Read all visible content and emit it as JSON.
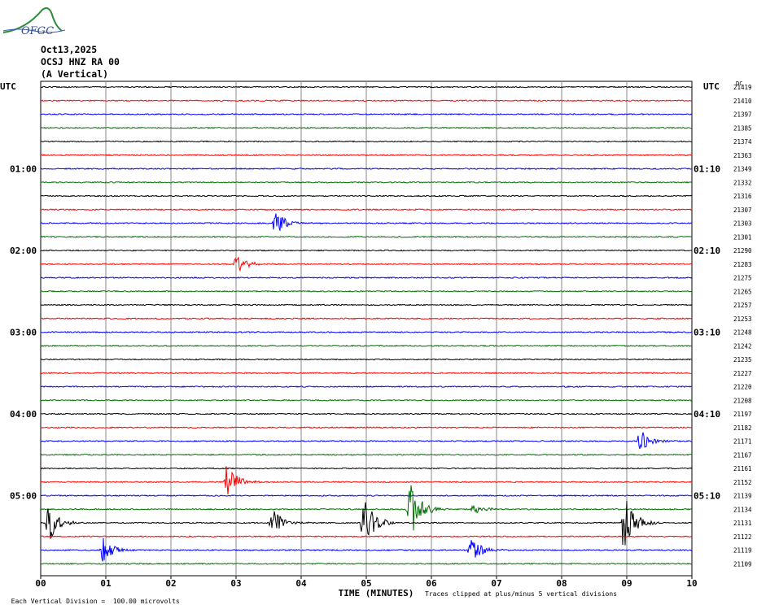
{
  "logo": {
    "text": "OFGC",
    "icon": "ofgc-logo-swoosh"
  },
  "header": {
    "date": "Oct13,2025",
    "station": "OCSJ HNZ RA 00",
    "component": "(A Vertical)"
  },
  "axis": {
    "utc_left": "UTC",
    "utc_right": "UTC",
    "dc_label": "DC",
    "xlabel": "TIME (MINUTES)",
    "x_ticks": [
      "00",
      "01",
      "02",
      "03",
      "04",
      "05",
      "06",
      "07",
      "08",
      "09",
      "10"
    ],
    "left_times": [
      {
        "trace": 6,
        "label": "01:00"
      },
      {
        "trace": 12,
        "label": "02:00"
      },
      {
        "trace": 18,
        "label": "03:00"
      },
      {
        "trace": 24,
        "label": "04:00"
      },
      {
        "trace": 30,
        "label": "05:00"
      }
    ],
    "right_times": [
      {
        "trace": 6,
        "label": "01:10"
      },
      {
        "trace": 12,
        "label": "02:10"
      },
      {
        "trace": 18,
        "label": "03:10"
      },
      {
        "trace": 24,
        "label": "04:10"
      },
      {
        "trace": 30,
        "label": "05:10"
      }
    ]
  },
  "footer": {
    "left": "Each Vertical Division =  100.00 microvolts",
    "right": "Traces clipped at plus/minus 5 vertical divisions"
  },
  "chart_data": {
    "type": "line",
    "title": "",
    "xlabel": "TIME (MINUTES)",
    "ylabel": "",
    "xlim": [
      0,
      10
    ],
    "grid": true,
    "trace_colors": [
      "#000000",
      "#ff0000",
      "#0000ff",
      "#007000"
    ],
    "dc_offsets": [
      21419,
      21410,
      21397,
      21385,
      21374,
      21363,
      21349,
      21332,
      21316,
      21307,
      21303,
      21301,
      21290,
      21283,
      21275,
      21265,
      21257,
      21253,
      21248,
      21242,
      21235,
      21227,
      21220,
      21208,
      21197,
      21182,
      21171,
      21167,
      21161,
      21152,
      21139,
      21134,
      21131,
      21122,
      21119,
      21109
    ],
    "events": [
      {
        "trace": 10,
        "minute": 3.6,
        "amplitude": 0.9
      },
      {
        "trace": 13,
        "minute": 3.0,
        "amplitude": 0.7
      },
      {
        "trace": 26,
        "minute": 9.2,
        "amplitude": 0.9
      },
      {
        "trace": 29,
        "minute": 2.85,
        "amplitude": 1.4
      },
      {
        "trace": 31,
        "minute": 5.65,
        "amplitude": 2.8
      },
      {
        "trace": 31,
        "minute": 6.65,
        "amplitude": 0.5
      },
      {
        "trace": 32,
        "minute": 0.12,
        "amplitude": 1.6
      },
      {
        "trace": 32,
        "minute": 3.55,
        "amplitude": 1.2
      },
      {
        "trace": 32,
        "minute": 4.95,
        "amplitude": 2.2
      },
      {
        "trace": 32,
        "minute": 8.95,
        "amplitude": 2.5
      },
      {
        "trace": 34,
        "minute": 0.95,
        "amplitude": 1.1
      },
      {
        "trace": 34,
        "minute": 6.6,
        "amplitude": 1.0
      }
    ]
  }
}
